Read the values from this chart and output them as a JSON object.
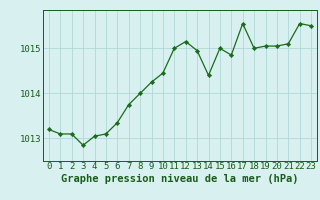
{
  "x": [
    0,
    1,
    2,
    3,
    4,
    5,
    6,
    7,
    8,
    9,
    10,
    11,
    12,
    13,
    14,
    15,
    16,
    17,
    18,
    19,
    20,
    21,
    22,
    23
  ],
  "y": [
    1013.2,
    1013.1,
    1013.1,
    1012.85,
    1013.05,
    1013.1,
    1013.35,
    1013.75,
    1014.0,
    1014.25,
    1014.45,
    1015.0,
    1015.15,
    1014.95,
    1014.4,
    1015.0,
    1014.85,
    1015.55,
    1015.0,
    1015.05,
    1015.05,
    1015.1,
    1015.55,
    1015.5
  ],
  "line_color": "#1a6b1a",
  "marker_color": "#1a6b1a",
  "bg_color": "#d8f0f0",
  "grid_color": "#b0d8d8",
  "title": "Graphe pression niveau de la mer (hPa)",
  "xlabel_ticks": [
    0,
    1,
    2,
    3,
    4,
    5,
    6,
    7,
    8,
    9,
    10,
    11,
    12,
    13,
    14,
    15,
    16,
    17,
    18,
    19,
    20,
    21,
    22,
    23
  ],
  "yticks": [
    1013,
    1014,
    1015
  ],
  "ylim": [
    1012.5,
    1015.85
  ],
  "xlim": [
    -0.5,
    23.5
  ],
  "title_fontsize": 7.5,
  "tick_fontsize": 6.5,
  "title_color": "#1a5c1a",
  "tick_color": "#1a5c1a",
  "spine_color": "#1a5c1a"
}
